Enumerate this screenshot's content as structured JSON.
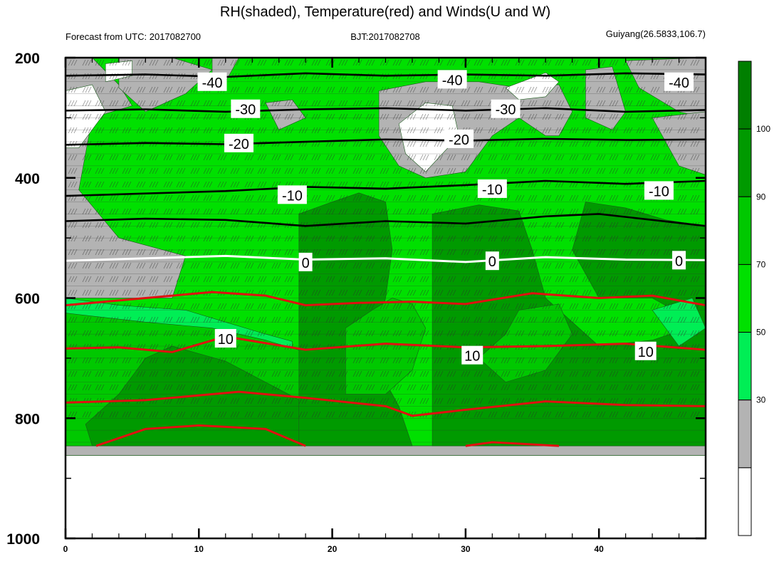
{
  "chart_data": {
    "type": "heatmap",
    "title": "RH(shaded), Temperature(red) and Winds(U and W)",
    "subtitle_left": "Forecast from UTC: 2017082700",
    "subtitle_center": "BJT:2017082708",
    "subtitle_right": "Guiyang(26.5833,106.7)",
    "xlabel": "",
    "ylabel": "",
    "xlim": [
      0,
      48
    ],
    "ylim": [
      1000,
      200
    ],
    "x_ticks": [
      0,
      10,
      20,
      30,
      40
    ],
    "y_ticks": [
      200,
      400,
      600,
      800,
      1000
    ],
    "colorbar": {
      "levels": [
        30,
        50,
        70,
        90,
        100
      ],
      "colors": [
        "#ffffff",
        "#b3b3b3",
        "#00ee55",
        "#00e000",
        "#00c800",
        "#009a00",
        "#007f00"
      ]
    },
    "temperature_isotherms": [
      {
        "label": "-40",
        "color": "black",
        "labels_at": [
          [
            11,
            240
          ],
          [
            29,
            236
          ],
          [
            46,
            240
          ]
        ],
        "points": [
          [
            0,
            230
          ],
          [
            6,
            228
          ],
          [
            12,
            232
          ],
          [
            18,
            226
          ],
          [
            24,
            230
          ],
          [
            30,
            228
          ],
          [
            36,
            230
          ],
          [
            42,
            226
          ],
          [
            48,
            228
          ]
        ]
      },
      {
        "label": "-30",
        "color": "black",
        "labels_at": [
          [
            13.5,
            285
          ],
          [
            33,
            285
          ]
        ],
        "points": [
          [
            0,
            288
          ],
          [
            6,
            286
          ],
          [
            12,
            290
          ],
          [
            18,
            286
          ],
          [
            24,
            284
          ],
          [
            30,
            288
          ],
          [
            36,
            284
          ],
          [
            42,
            290
          ],
          [
            48,
            287
          ]
        ]
      },
      {
        "label": "-20",
        "color": "black",
        "labels_at": [
          [
            13,
            342
          ],
          [
            29.5,
            335
          ]
        ],
        "points": [
          [
            0,
            345
          ],
          [
            6,
            342
          ],
          [
            12,
            344
          ],
          [
            18,
            340
          ],
          [
            24,
            336
          ],
          [
            30,
            338
          ],
          [
            36,
            335
          ],
          [
            42,
            337
          ],
          [
            48,
            336
          ]
        ]
      },
      {
        "label": "-10",
        "color": "black",
        "labels_at": [
          [
            17,
            428
          ],
          [
            32,
            418
          ],
          [
            44.5,
            421
          ]
        ],
        "points": [
          [
            0,
            430
          ],
          [
            6,
            426
          ],
          [
            12,
            422
          ],
          [
            18,
            415
          ],
          [
            24,
            418
          ],
          [
            30,
            412
          ],
          [
            36,
            405
          ],
          [
            42,
            410
          ],
          [
            48,
            405
          ]
        ]
      },
      {
        "label": "",
        "color": "black",
        "labels_at": [],
        "points": [
          [
            0,
            472
          ],
          [
            6,
            468
          ],
          [
            12,
            470
          ],
          [
            18,
            480
          ],
          [
            24,
            472
          ],
          [
            30,
            476
          ],
          [
            36,
            464
          ],
          [
            40,
            460
          ],
          [
            44,
            470
          ],
          [
            48,
            480
          ]
        ]
      },
      {
        "label": "0",
        "color": "white",
        "labels_at": [
          [
            18,
            540
          ],
          [
            32,
            538
          ],
          [
            46,
            537
          ]
        ],
        "points": [
          [
            0,
            538
          ],
          [
            6,
            534
          ],
          [
            12,
            530
          ],
          [
            18,
            536
          ],
          [
            24,
            534
          ],
          [
            30,
            540
          ],
          [
            36,
            532
          ],
          [
            42,
            536
          ],
          [
            48,
            537
          ]
        ]
      },
      {
        "label": "",
        "color": "red",
        "labels_at": [],
        "points": [
          [
            0,
            612
          ],
          [
            6,
            600
          ],
          [
            11,
            590
          ],
          [
            15,
            596
          ],
          [
            18,
            612
          ],
          [
            22,
            608
          ],
          [
            26,
            606
          ],
          [
            30,
            610
          ],
          [
            35,
            592
          ],
          [
            40,
            600
          ],
          [
            44,
            596
          ],
          [
            48,
            612
          ]
        ]
      },
      {
        "label": "10",
        "color": "red",
        "labels_at": [
          [
            12,
            667
          ],
          [
            30.5,
            695
          ],
          [
            43.5,
            688
          ]
        ],
        "points": [
          [
            0,
            684
          ],
          [
            4,
            682
          ],
          [
            8,
            690
          ],
          [
            12,
            664
          ],
          [
            18,
            686
          ],
          [
            24,
            676
          ],
          [
            30,
            682
          ],
          [
            36,
            680
          ],
          [
            42,
            676
          ],
          [
            48,
            686
          ]
        ]
      },
      {
        "label": "",
        "color": "red",
        "labels_at": [],
        "points": [
          [
            0,
            774
          ],
          [
            6,
            770
          ],
          [
            13,
            756
          ],
          [
            18,
            766
          ],
          [
            24,
            780
          ],
          [
            26,
            796
          ],
          [
            30,
            786
          ],
          [
            36,
            772
          ],
          [
            42,
            778
          ],
          [
            48,
            780
          ]
        ]
      },
      {
        "label": "",
        "color": "red",
        "labels_at": [],
        "points": [
          [
            2.3,
            846
          ],
          [
            6,
            818
          ],
          [
            10,
            812
          ],
          [
            15,
            818
          ],
          [
            18,
            846
          ]
        ]
      },
      {
        "label": "",
        "color": "red",
        "labels_at": [],
        "points": [
          [
            30,
            846
          ],
          [
            32,
            840
          ],
          [
            37,
            846
          ]
        ]
      }
    ]
  }
}
